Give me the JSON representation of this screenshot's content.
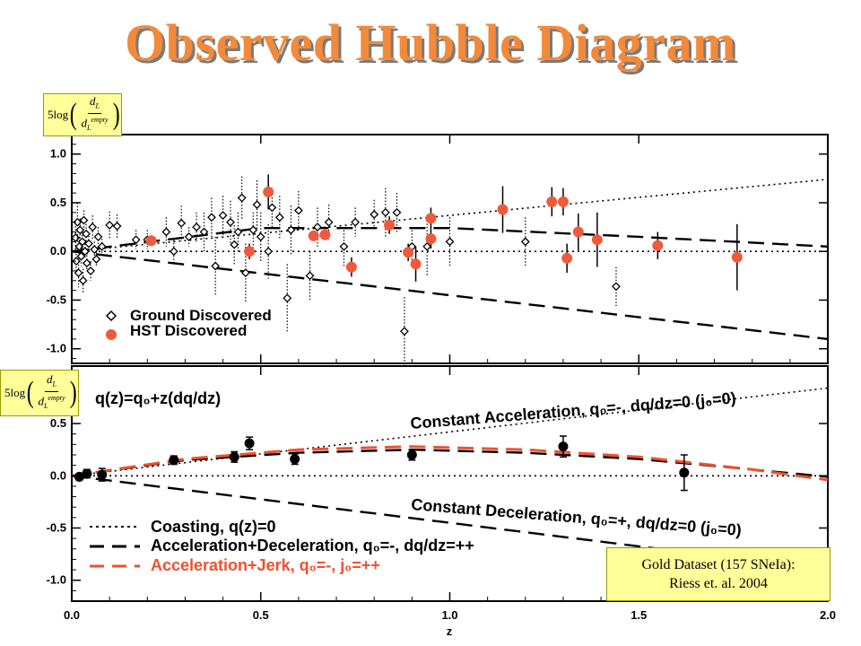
{
  "title": "Observed Hubble Diagram",
  "ylabel_top": {
    "prefix": "5log",
    "num": "d",
    "num_sub": "L",
    "den": "d",
    "den_sub": "L",
    "den_sup": "empty"
  },
  "ylabel_bottom": {
    "prefix": "5log",
    "num": "d",
    "num_sub": "L",
    "den": "d",
    "den_sub": "L",
    "den_sup": "empty"
  },
  "citation": {
    "line1": "Gold Dataset (157 SNeIa):",
    "line2": "Riess et. al. 2004"
  },
  "colors": {
    "hst": "#f05a3c",
    "jerk": "#f0502f",
    "title": "#f28a3a"
  },
  "chart_data": [
    {
      "type": "scatter",
      "xlabel": "",
      "ylabel": "5log(dL/dL empty)",
      "xlim": [
        0.0,
        2.0
      ],
      "ylim": [
        -1.15,
        1.2
      ],
      "y_ticks": [
        "1.0",
        "0.5",
        "0.0",
        "-0.5",
        "-1.0"
      ],
      "legend": [
        "Ground Discovered",
        "HST Discovered"
      ],
      "legend_position": "bottom-left",
      "series": [
        {
          "name": "HST Discovered",
          "marker": "filled-circle",
          "points": [
            {
              "x": 0.21,
              "y": 0.11,
              "err": 0.05
            },
            {
              "x": 0.47,
              "y": 0.0,
              "err": 0.08
            },
            {
              "x": 0.52,
              "y": 0.61,
              "err": 0.18
            },
            {
              "x": 0.64,
              "y": 0.16,
              "err": 0.05
            },
            {
              "x": 0.67,
              "y": 0.17,
              "err": 0.05
            },
            {
              "x": 0.74,
              "y": -0.16,
              "err": 0.1
            },
            {
              "x": 0.84,
              "y": 0.27,
              "err": 0.09
            },
            {
              "x": 0.89,
              "y": -0.01,
              "err": 0.09
            },
            {
              "x": 0.91,
              "y": -0.13,
              "err": 0.18
            },
            {
              "x": 0.95,
              "y": 0.13,
              "err": 0.1
            },
            {
              "x": 0.95,
              "y": 0.34,
              "err": 0.11
            },
            {
              "x": 1.14,
              "y": 0.43,
              "err": 0.24
            },
            {
              "x": 1.27,
              "y": 0.51,
              "err": 0.15
            },
            {
              "x": 1.3,
              "y": 0.51,
              "err": 0.14
            },
            {
              "x": 1.31,
              "y": -0.07,
              "err": 0.15
            },
            {
              "x": 1.34,
              "y": 0.2,
              "err": 0.19
            },
            {
              "x": 1.39,
              "y": 0.12,
              "err": 0.28
            },
            {
              "x": 1.55,
              "y": 0.06,
              "err": 0.14
            },
            {
              "x": 1.76,
              "y": -0.06,
              "err": 0.34
            }
          ]
        },
        {
          "name": "Ground Discovered",
          "marker": "open-diamond",
          "points": [
            {
              "x": 0.01,
              "y": 0.14,
              "err": 0.12
            },
            {
              "x": 0.012,
              "y": -0.1,
              "err": 0.14
            },
            {
              "x": 0.015,
              "y": 0.3,
              "err": 0.2
            },
            {
              "x": 0.018,
              "y": -0.22,
              "err": 0.15
            },
            {
              "x": 0.02,
              "y": 0.05,
              "err": 0.1
            },
            {
              "x": 0.022,
              "y": 0.22,
              "err": 0.12
            },
            {
              "x": 0.025,
              "y": -0.05,
              "err": 0.1
            },
            {
              "x": 0.028,
              "y": 0.1,
              "err": 0.1
            },
            {
              "x": 0.03,
              "y": -0.3,
              "err": 0.12
            },
            {
              "x": 0.032,
              "y": 0.32,
              "err": 0.1
            },
            {
              "x": 0.035,
              "y": 0.0,
              "err": 0.08
            },
            {
              "x": 0.038,
              "y": 0.18,
              "err": 0.1
            },
            {
              "x": 0.04,
              "y": -0.12,
              "err": 0.08
            },
            {
              "x": 0.045,
              "y": 0.08,
              "err": 0.08
            },
            {
              "x": 0.05,
              "y": -0.2,
              "err": 0.1
            },
            {
              "x": 0.055,
              "y": 0.25,
              "err": 0.12
            },
            {
              "x": 0.06,
              "y": 0.02,
              "err": 0.08
            },
            {
              "x": 0.065,
              "y": -0.08,
              "err": 0.08
            },
            {
              "x": 0.07,
              "y": 0.15,
              "err": 0.1
            },
            {
              "x": 0.08,
              "y": 0.05,
              "err": 0.08
            },
            {
              "x": 0.1,
              "y": 0.27,
              "err": 0.14
            },
            {
              "x": 0.12,
              "y": 0.26,
              "err": 0.12
            },
            {
              "x": 0.17,
              "y": 0.12,
              "err": 0.1
            },
            {
              "x": 0.2,
              "y": 0.12,
              "err": 0.1
            },
            {
              "x": 0.25,
              "y": 0.2,
              "err": 0.15
            },
            {
              "x": 0.27,
              "y": 0.0,
              "err": 0.12
            },
            {
              "x": 0.29,
              "y": 0.29,
              "err": 0.18
            },
            {
              "x": 0.31,
              "y": 0.15,
              "err": 0.1
            },
            {
              "x": 0.33,
              "y": 0.25,
              "err": 0.15
            },
            {
              "x": 0.35,
              "y": 0.2,
              "err": 0.2
            },
            {
              "x": 0.37,
              "y": 0.35,
              "err": 0.2
            },
            {
              "x": 0.38,
              "y": -0.15,
              "err": 0.3
            },
            {
              "x": 0.4,
              "y": 0.37,
              "err": 0.2
            },
            {
              "x": 0.42,
              "y": 0.3,
              "err": 0.22
            },
            {
              "x": 0.43,
              "y": 0.07,
              "err": 0.2
            },
            {
              "x": 0.44,
              "y": 0.2,
              "err": 0.2
            },
            {
              "x": 0.45,
              "y": 0.55,
              "err": 0.22
            },
            {
              "x": 0.46,
              "y": -0.22,
              "err": 0.3
            },
            {
              "x": 0.48,
              "y": 0.22,
              "err": 0.18
            },
            {
              "x": 0.49,
              "y": 0.48,
              "err": 0.25
            },
            {
              "x": 0.5,
              "y": 0.15,
              "err": 0.25
            },
            {
              "x": 0.52,
              "y": 0.0,
              "err": 0.28
            },
            {
              "x": 0.53,
              "y": 0.45,
              "err": 0.2
            },
            {
              "x": 0.55,
              "y": 0.35,
              "err": 0.22
            },
            {
              "x": 0.57,
              "y": -0.48,
              "err": 0.35
            },
            {
              "x": 0.58,
              "y": 0.22,
              "err": 0.25
            },
            {
              "x": 0.6,
              "y": 0.42,
              "err": 0.2
            },
            {
              "x": 0.63,
              "y": -0.25,
              "err": 0.25
            },
            {
              "x": 0.65,
              "y": 0.25,
              "err": 0.2
            },
            {
              "x": 0.68,
              "y": 0.3,
              "err": 0.18
            },
            {
              "x": 0.72,
              "y": 0.05,
              "err": 0.2
            },
            {
              "x": 0.75,
              "y": 0.3,
              "err": 0.15
            },
            {
              "x": 0.8,
              "y": 0.38,
              "err": 0.15
            },
            {
              "x": 0.83,
              "y": 0.4,
              "err": 0.25
            },
            {
              "x": 0.86,
              "y": 0.4,
              "err": 0.2
            },
            {
              "x": 0.88,
              "y": -0.82,
              "err": 0.35
            },
            {
              "x": 0.9,
              "y": 0.05,
              "err": 0.2
            },
            {
              "x": 0.94,
              "y": 0.05,
              "err": 0.3
            },
            {
              "x": 1.0,
              "y": 0.1,
              "err": 0.25
            },
            {
              "x": 1.2,
              "y": 0.1,
              "err": 0.25
            },
            {
              "x": 1.44,
              "y": -0.36,
              "err": 0.2
            }
          ]
        }
      ],
      "lines": [
        {
          "name": "dotted-upper",
          "style": "dotted",
          "points": [
            [
              0,
              0
            ],
            [
              2.0,
              0.74
            ]
          ]
        },
        {
          "name": "dotted-zero",
          "style": "dotted",
          "points": [
            [
              0,
              0
            ],
            [
              2.0,
              0
            ]
          ]
        },
        {
          "name": "dashed-middle",
          "style": "dashed",
          "points": [
            [
              0,
              0
            ],
            [
              0.5,
              0.24
            ],
            [
              1.0,
              0.24
            ],
            [
              1.5,
              0.15
            ],
            [
              2.0,
              0.05
            ]
          ]
        },
        {
          "name": "dashed-lower",
          "style": "dashed",
          "points": [
            [
              0,
              0
            ],
            [
              2.0,
              -0.9
            ]
          ]
        }
      ]
    },
    {
      "type": "scatter",
      "xlabel": "z",
      "ylabel": "5log(dL/dL empty)",
      "xlim": [
        0.0,
        2.0
      ],
      "ylim": [
        -1.2,
        1.05
      ],
      "x_ticks": [
        "0.0",
        "0.5",
        "1.0",
        "1.5",
        "2.0"
      ],
      "y_ticks": [
        "0.5",
        "0.0",
        "-0.5",
        "-1.0"
      ],
      "model_labels": {
        "eq": "q(z)=q₀+z(dq/dz)",
        "acc": "Constant Acceleration, q₀=-, dq/dz=0 (j₀=0)",
        "dec": "Constant Deceleration, q₀=+, dq/dz=0 (j₀=0)"
      },
      "legend": [
        "Coasting, q(z)=0",
        "Acceleration+Deceleration, q₀=-, dq/dz=++",
        "Acceleration+Jerk, q₀=-, j₀=++"
      ],
      "legend_position": "bottom-left",
      "series": [
        {
          "name": "binned",
          "marker": "filled-circle",
          "points": [
            {
              "x": 0.02,
              "y": -0.01,
              "err": 0.03
            },
            {
              "x": 0.04,
              "y": 0.02,
              "err": 0.04
            },
            {
              "x": 0.08,
              "y": 0.01,
              "err": 0.06
            },
            {
              "x": 0.27,
              "y": 0.15,
              "err": 0.04
            },
            {
              "x": 0.43,
              "y": 0.18,
              "err": 0.05
            },
            {
              "x": 0.47,
              "y": 0.31,
              "err": 0.06
            },
            {
              "x": 0.59,
              "y": 0.16,
              "err": 0.05
            },
            {
              "x": 0.9,
              "y": 0.2,
              "err": 0.05
            },
            {
              "x": 1.3,
              "y": 0.28,
              "err": 0.1
            },
            {
              "x": 1.62,
              "y": 0.03,
              "err": 0.17
            }
          ]
        }
      ],
      "lines": [
        {
          "name": "constant-acceleration",
          "style": "dotted",
          "points": [
            [
              0,
              0
            ],
            [
              2.0,
              0.84
            ]
          ]
        },
        {
          "name": "coasting",
          "style": "dotted",
          "points": [
            [
              0,
              0
            ],
            [
              2.0,
              0
            ]
          ]
        },
        {
          "name": "acc-dec",
          "style": "dashed",
          "points": [
            [
              0,
              0
            ],
            [
              0.3,
              0.15
            ],
            [
              0.6,
              0.22
            ],
            [
              0.9,
              0.25
            ],
            [
              1.2,
              0.22
            ],
            [
              1.5,
              0.16
            ],
            [
              1.8,
              0.06
            ],
            [
              2.0,
              -0.01
            ]
          ]
        },
        {
          "name": "acc-jerk",
          "style": "dashed-red",
          "points": [
            [
              0,
              0
            ],
            [
              0.3,
              0.16
            ],
            [
              0.6,
              0.25
            ],
            [
              0.9,
              0.28
            ],
            [
              1.2,
              0.25
            ],
            [
              1.5,
              0.18
            ],
            [
              1.8,
              0.06
            ],
            [
              2.0,
              -0.04
            ]
          ]
        },
        {
          "name": "constant-deceleration",
          "style": "dashed",
          "points": [
            [
              0,
              0
            ],
            [
              2.0,
              -0.9
            ]
          ]
        }
      ]
    }
  ]
}
